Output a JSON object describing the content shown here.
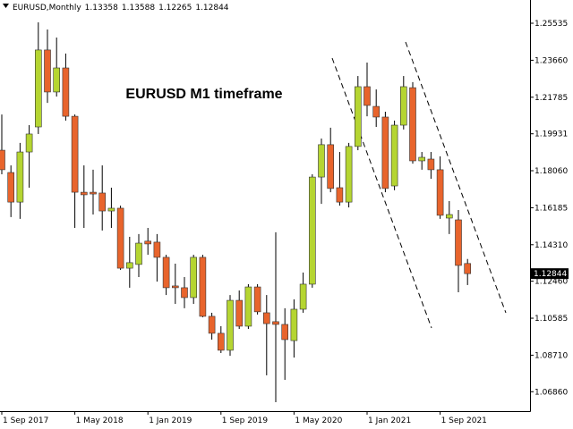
{
  "chart_data": {
    "type": "candlestick",
    "title": "EURUSD,Monthly",
    "annotation": "EURUSD M1 timeframe",
    "categories": [
      "1 Sep 2017",
      null,
      null,
      null,
      null,
      null,
      null,
      null,
      "1 May 2018",
      null,
      null,
      null,
      null,
      null,
      null,
      null,
      "1 Jan 2019",
      null,
      null,
      null,
      null,
      null,
      null,
      null,
      "1 Sep 2019",
      null,
      null,
      null,
      null,
      null,
      null,
      null,
      "1 May 2020",
      null,
      null,
      null,
      null,
      null,
      null,
      null,
      "1 Jan 2021",
      null,
      null,
      null,
      null,
      null,
      null,
      null,
      "1 Sep 2021",
      null,
      null,
      null
    ],
    "open": [
      1.191,
      1.1797,
      1.1647,
      1.1901,
      1.2028,
      1.2418,
      1.2205,
      1.2327,
      1.2082,
      1.1697,
      1.1697,
      1.1693,
      1.1602,
      1.1616,
      1.1312,
      1.1331,
      1.1449,
      1.1444,
      1.1367,
      1.1222,
      1.1213,
      1.1163,
      1.1367,
      1.1068,
      1.0982,
      1.0896,
      1.1149,
      1.1018,
      1.1217,
      1.1086,
      1.1041,
      1.1027,
      1.0945,
      1.1104,
      1.1231,
      1.1774,
      1.1938,
      1.172,
      1.1647,
      1.1929,
      1.2232,
      1.2132,
      1.2078,
      1.1729,
      1.2037,
      1.2227,
      1.1856,
      1.1865,
      1.1811,
      1.1566,
      1.1557,
      1.13358
    ],
    "high": [
      1.2091,
      1.1833,
      1.1947,
      1.2037,
      1.2558,
      1.2522,
      1.2481,
      1.24,
      1.2091,
      1.1833,
      1.1811,
      1.1833,
      1.172,
      1.1629,
      1.1471,
      1.1485,
      1.1516,
      1.1485,
      1.138,
      1.1335,
      1.1267,
      1.138,
      1.138,
      1.1086,
      1.1018,
      1.1176,
      1.1199,
      1.1231,
      1.1231,
      1.1176,
      1.1494,
      1.1109,
      1.1154,
      1.129,
      1.1788,
      1.1969,
      1.2024,
      1.1901,
      1.1947,
      1.2286,
      1.2354,
      1.2218,
      1.2105,
      1.206,
      1.2286,
      1.2255,
      1.1901,
      1.1901,
      1.1879,
      1.1652,
      1.1607,
      1.13588
    ],
    "low": [
      1.1788,
      1.1571,
      1.1562,
      1.172,
      1.1992,
      1.215,
      1.2182,
      1.206,
      1.1516,
      1.1516,
      1.1584,
      1.1503,
      1.1516,
      1.1303,
      1.1213,
      1.1267,
      1.138,
      1.1244,
      1.1176,
      1.1131,
      1.1109,
      1.1131,
      1.1063,
      1.095,
      1.0882,
      1.0868,
      1.1004,
      1.1004,
      1.1077,
      1.0769,
      1.0633,
      1.0746,
      1.0859,
      1.1086,
      1.1213,
      1.1638,
      1.1697,
      1.1629,
      1.162,
      1.191,
      1.2082,
      1.2028,
      1.1697,
      1.1707,
      1.2015,
      1.1842,
      1.1811,
      1.1765,
      1.1562,
      1.1485,
      1.119,
      1.12265
    ],
    "close": [
      1.1811,
      1.1647,
      1.1901,
      1.1992,
      1.2418,
      1.2205,
      1.2327,
      1.2082,
      1.1697,
      1.1684,
      1.1688,
      1.1602,
      1.1616,
      1.1312,
      1.134,
      1.1439,
      1.1435,
      1.1367,
      1.1213,
      1.1213,
      1.1163,
      1.1367,
      1.1068,
      1.0982,
      1.0896,
      1.1149,
      1.1018,
      1.1217,
      1.1091,
      1.1031,
      1.1027,
      1.095,
      1.1104,
      1.1231,
      1.1774,
      1.1938,
      1.1716,
      1.1647,
      1.1929,
      1.2232,
      1.2137,
      1.2078,
      1.1716,
      1.2037,
      1.2232,
      1.1856,
      1.1874,
      1.1811,
      1.158,
      1.1584,
      1.1326,
      1.12844
    ],
    "up_color": "#b5d531",
    "down_color": "#e8642c",
    "ylim": [
      1.05875,
      1.26713
    ],
    "yticks": [
      {
        "value": 1.0686,
        "label": "1.06860"
      },
      {
        "value": 1.0871,
        "label": "1.08710"
      },
      1.10585,
      {
        "value": 1.1246,
        "label": "1.12460"
      },
      {
        "value": 1.1431,
        "label": "1.14310"
      },
      1.16185,
      {
        "value": 1.1806,
        "label": "1.18060"
      },
      1.19931,
      1.21785,
      {
        "value": 1.2366,
        "label": "1.23660"
      },
      1.25535
    ]
  }
}
